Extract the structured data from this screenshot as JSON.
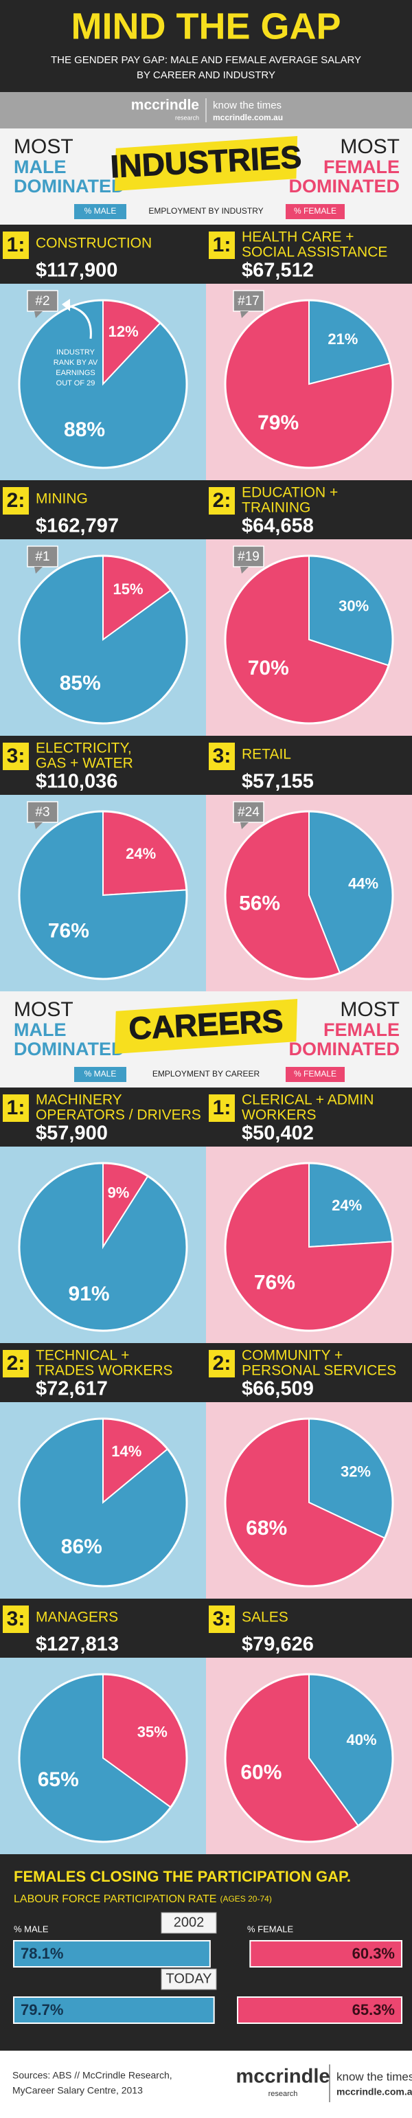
{
  "colors": {
    "male": "#3f9dc6",
    "female": "#ec4670"
  },
  "header": {
    "title": "MIND THE GAP",
    "subtitle": [
      "THE GENDER PAY GAP: MALE AND FEMALE AVERAGE SALARY",
      "BY CAREER AND INDUSTRY"
    ]
  },
  "logo_bar": {
    "brand": "mccrindle",
    "brand_sub": "research",
    "tagline": "know the times",
    "url": "mccrindle.com.au"
  },
  "sections": [
    {
      "title": "INDUSTRIES",
      "left_heading": {
        "most": "MOST",
        "lines": [
          "MALE",
          "DOMINATED"
        ]
      },
      "right_heading": {
        "most": "MOST",
        "lines": [
          "FEMALE",
          "DOMINATED"
        ]
      },
      "legend": {
        "male": "% MALE",
        "middle": "EMPLOYMENT BY INDUSTRY",
        "female": "% FEMALE"
      },
      "annotation": [
        "INDUSTRY",
        "RANK BY AV",
        "EARNINGS",
        "OUT OF 29"
      ],
      "rows": [
        {
          "left": {
            "rank": "1:",
            "name": [
              "CONSTRUCTION"
            ],
            "salary": "$117,900",
            "badge": "#2",
            "values": [
              88,
              12
            ],
            "value_labels": [
              "88%",
              "12%"
            ]
          },
          "right": {
            "rank": "1:",
            "name": [
              "HEALTH CARE +",
              "SOCIAL ASSISTANCE"
            ],
            "salary": "$67,512",
            "badge": "#17",
            "values": [
              21,
              79
            ],
            "value_labels": [
              "21%",
              "79%"
            ]
          }
        },
        {
          "left": {
            "rank": "2:",
            "name": [
              "MINING"
            ],
            "salary": "$162,797",
            "badge": "#1",
            "values": [
              85,
              15
            ],
            "value_labels": [
              "85%",
              "15%"
            ]
          },
          "right": {
            "rank": "2:",
            "name": [
              "EDUCATION +",
              "TRAINING"
            ],
            "salary": "$64,658",
            "badge": "#19",
            "values": [
              30,
              70
            ],
            "value_labels": [
              "30%",
              "70%"
            ]
          }
        },
        {
          "left": {
            "rank": "3:",
            "name": [
              "ELECTRICITY,",
              "GAS + WATER"
            ],
            "salary": "$110,036",
            "badge": "#3",
            "values": [
              76,
              24
            ],
            "value_labels": [
              "76%",
              "24%"
            ]
          },
          "right": {
            "rank": "3:",
            "name": [
              "RETAIL"
            ],
            "salary": "$57,155",
            "badge": "#24",
            "values": [
              44,
              56
            ],
            "value_labels": [
              "44%",
              "56%"
            ]
          }
        }
      ]
    },
    {
      "title": "CAREERS",
      "left_heading": {
        "most": "MOST",
        "lines": [
          "MALE",
          "DOMINATED"
        ]
      },
      "right_heading": {
        "most": "MOST",
        "lines": [
          "FEMALE",
          "DOMINATED"
        ]
      },
      "legend": {
        "male": "% MALE",
        "middle": "EMPLOYMENT BY CAREER",
        "female": "% FEMALE"
      },
      "rows": [
        {
          "left": {
            "rank": "1:",
            "name": [
              "MACHINERY",
              "OPERATORS / DRIVERS"
            ],
            "salary": "$57,900",
            "values": [
              91,
              9
            ],
            "value_labels": [
              "91%",
              "9%"
            ]
          },
          "right": {
            "rank": "1:",
            "name": [
              "CLERICAL + ADMIN",
              "WORKERS"
            ],
            "salary": "$50,402",
            "values": [
              24,
              76
            ],
            "value_labels": [
              "24%",
              "76%"
            ]
          }
        },
        {
          "left": {
            "rank": "2:",
            "name": [
              "TECHNICAL +",
              "TRADES WORKERS"
            ],
            "salary": "$72,617",
            "values": [
              86,
              14
            ],
            "value_labels": [
              "86%",
              "14%"
            ]
          },
          "right": {
            "rank": "2:",
            "name": [
              "COMMUNITY +",
              "PERSONAL SERVICES"
            ],
            "salary": "$66,509",
            "values": [
              32,
              68
            ],
            "value_labels": [
              "32%",
              "68%"
            ]
          }
        },
        {
          "left": {
            "rank": "3:",
            "name": [
              "MANAGERS"
            ],
            "salary": "$127,813",
            "values": [
              65,
              35
            ],
            "value_labels": [
              "65%",
              "35%"
            ]
          },
          "right": {
            "rank": "3:",
            "name": [
              "SALES"
            ],
            "salary": "$79,626",
            "values": [
              40,
              60
            ],
            "value_labels": [
              "40%",
              "60%"
            ]
          }
        }
      ]
    }
  ],
  "participation": {
    "title": "FEMALES CLOSING THE PARTICIPATION GAP.",
    "subtitle": "LABOUR FORCE PARTICIPATION RATE",
    "subtitle_note": "(AGES 20-74)",
    "male_heading": "% MALE",
    "female_heading": "% FEMALE",
    "rows": [
      {
        "year": "2002",
        "male": 78.1,
        "male_label": "78.1%",
        "female": 60.3,
        "female_label": "60.3%"
      },
      {
        "year": "TODAY",
        "male": 79.7,
        "male_label": "79.7%",
        "female": 65.3,
        "female_label": "65.3%"
      }
    ]
  },
  "footer": {
    "sources": [
      "Sources: ABS // McCrindle Research,",
      "MyCareer Salary Centre, 2013"
    ],
    "brand": "mccrindle",
    "brand_sub": "research",
    "tagline": "know the times",
    "url": "mccrindle.com.au"
  }
}
